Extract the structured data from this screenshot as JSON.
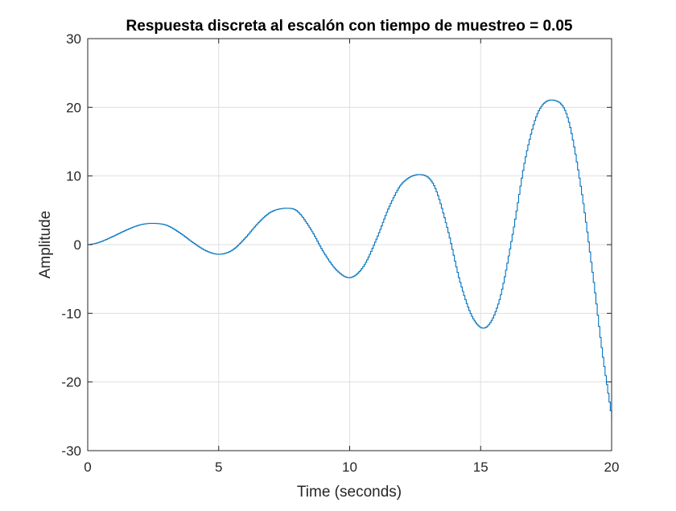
{
  "chart_data": {
    "type": "line",
    "line_style": "stairs",
    "title": "Respuesta discreta al escalón con tiempo de muestreo = 0.05",
    "xlabel": "Time (seconds)",
    "ylabel": "Amplitude",
    "xlim": [
      0,
      20
    ],
    "ylim": [
      -30,
      30
    ],
    "xticks": [
      0,
      5,
      10,
      15,
      20
    ],
    "yticks": [
      -30,
      -20,
      -10,
      0,
      10,
      20,
      30
    ],
    "xtick_labels": [
      "0",
      "5",
      "10",
      "15",
      "20"
    ],
    "ytick_labels": [
      "-30",
      "-20",
      "-10",
      "0",
      "10",
      "20",
      "30"
    ],
    "grid": true,
    "sample_time": 0.05,
    "colors": {
      "series": "#0072bd",
      "grid": "#dfdfdf",
      "axes": "#262626",
      "background": "#ffffff"
    },
    "series": [
      {
        "x": [
          0,
          0.3,
          0.6,
          1.0,
          1.5,
          2.0,
          2.5,
          3.0,
          3.5,
          4.0,
          4.5,
          5.0,
          5.5,
          6.0,
          6.5,
          7.0,
          7.6,
          8.0,
          8.5,
          9.0,
          9.5,
          10.0,
          10.5,
          11.0,
          11.5,
          12.0,
          12.7,
          13.2,
          13.7,
          14.2,
          14.7,
          15.2,
          15.7,
          16.2,
          16.7,
          17.2,
          17.8,
          18.3,
          18.8,
          19.3,
          19.6,
          20.0
        ],
        "y": [
          0,
          0.2,
          0.6,
          1.3,
          2.2,
          2.9,
          3.1,
          2.8,
          1.7,
          0.3,
          -0.9,
          -1.4,
          -0.8,
          1.0,
          3.2,
          4.8,
          5.3,
          4.8,
          2.2,
          -1.2,
          -3.8,
          -4.8,
          -3.2,
          0.8,
          5.6,
          9.0,
          10.2,
          8.6,
          2.5,
          -5.5,
          -10.8,
          -12.0,
          -8.0,
          1.5,
          12.8,
          19.5,
          21.0,
          18.5,
          8.5,
          -5.5,
          -15.0,
          -25.5
        ]
      }
    ]
  }
}
